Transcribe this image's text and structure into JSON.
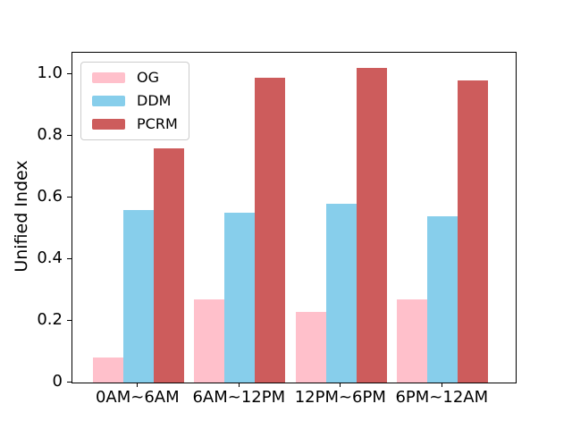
{
  "figure": {
    "background": "#ffffff",
    "text_color": "#000000"
  },
  "chart_data": {
    "type": "bar",
    "title": "",
    "xlabel": "",
    "ylabel": "Unified Index",
    "categories": [
      "0AM~6AM",
      "6AM~12PM",
      "12PM~6PM",
      "6PM~12AM"
    ],
    "series": [
      {
        "name": "OG",
        "color": "#FFC0CB",
        "values": [
          0.08,
          0.27,
          0.23,
          0.27
        ]
      },
      {
        "name": "DDM",
        "color": "#87CEEB",
        "values": [
          0.56,
          0.55,
          0.58,
          0.54
        ]
      },
      {
        "name": "PCRM",
        "color": "#CD5C5C",
        "values": [
          0.76,
          0.99,
          1.02,
          0.98
        ]
      }
    ],
    "ylim": [
      0,
      1.07
    ],
    "xlim": [
      -0.65,
      3.72
    ],
    "yticks": [
      0,
      0.2,
      0.4,
      0.6,
      0.8,
      1.0
    ],
    "ytick_labels": [
      "0",
      "0.2",
      "0.4",
      "0.6",
      "0.8",
      "1.0"
    ],
    "bar_width": 0.3,
    "grid": false,
    "legend_position": "upper-left"
  }
}
